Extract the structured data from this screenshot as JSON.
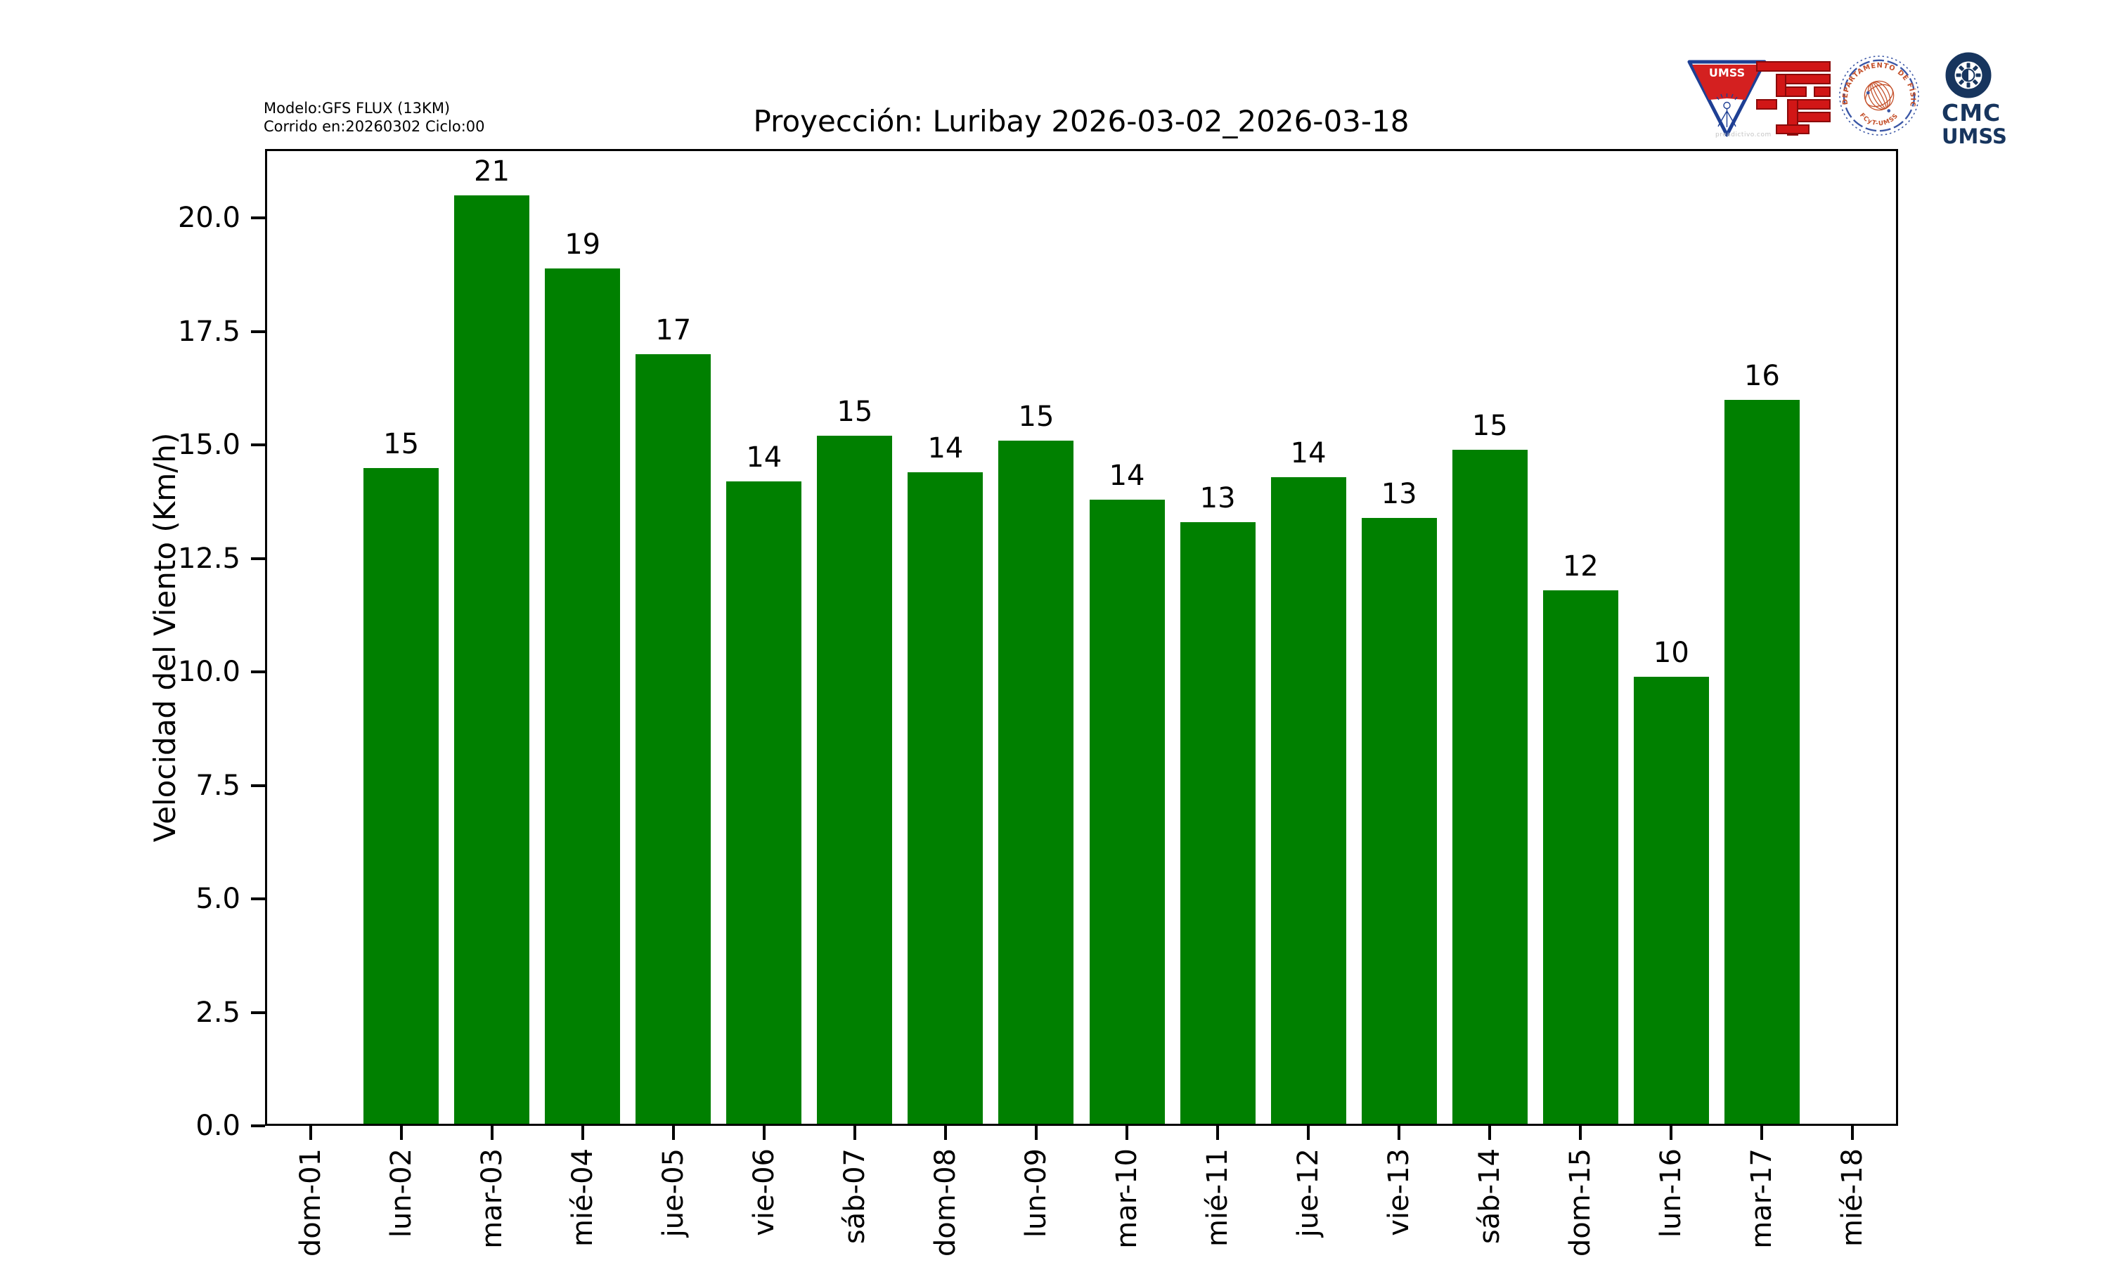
{
  "header": {
    "model_line1": "Modelo:GFS FLUX (13KM)",
    "model_line2": "Corrido en:20260302 Ciclo:00",
    "title": "Proyección: Luribay  2026-03-02_2026-03-18"
  },
  "chart_data": {
    "type": "bar",
    "title": "Proyección: Luribay  2026-03-02_2026-03-18",
    "xlabel": "",
    "ylabel": "Velocidad del Viento (Km/h)",
    "categories": [
      "dom-01",
      "lun-02",
      "mar-03",
      "mié-04",
      "jue-05",
      "vie-06",
      "sáb-07",
      "dom-08",
      "lun-09",
      "mar-10",
      "mié-11",
      "jue-12",
      "vie-13",
      "sáb-14",
      "dom-15",
      "lun-16",
      "mar-17",
      "mié-18"
    ],
    "values": [
      null,
      14.5,
      20.5,
      18.9,
      17.0,
      14.2,
      15.2,
      14.4,
      15.1,
      13.8,
      13.3,
      14.3,
      13.4,
      14.9,
      11.8,
      9.9,
      16.0,
      null
    ],
    "bar_labels": [
      null,
      "15",
      "21",
      "19",
      "17",
      "14",
      "15",
      "14",
      "15",
      "14",
      "13",
      "14",
      "13",
      "15",
      "12",
      "10",
      "16",
      null
    ],
    "yticks": [
      "0.0",
      "2.5",
      "5.0",
      "7.5",
      "10.0",
      "12.5",
      "15.0",
      "17.5",
      "20.0"
    ],
    "ylim": [
      0,
      21.525
    ],
    "grid": false,
    "x_tick_rotation": 90,
    "bar_color": "#008000",
    "legend": null
  },
  "colors": {
    "bar_green": "#008000",
    "axis_black": "#000000",
    "pennant_blue": "#1e3f94",
    "pennant_red": "#d42020",
    "fcyt_red": "#d11616",
    "fcyt_dark_red": "#8a0a0a",
    "seal_blue": "#3a56a5",
    "seal_orange": "#c4502a",
    "cmc_navy": "#17355e"
  },
  "logos": {
    "umss_pennant": {
      "label": "UMSS",
      "watermark": "preadictivo.com"
    },
    "physics_seal": {
      "arc_text": "DEPARTAMENTO DE FÍSICA",
      "bottom_text": "FCyT-UMSS"
    },
    "cmc": {
      "line1": "CMC",
      "line2": "UMSS"
    }
  }
}
